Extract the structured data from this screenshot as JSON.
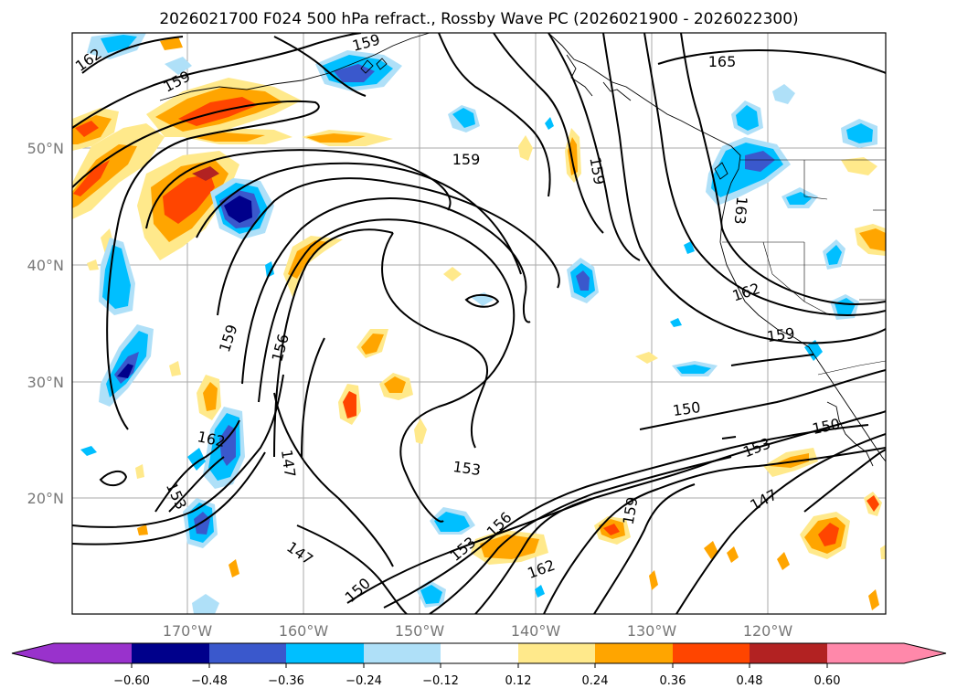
{
  "title": "2026021700 F024 500 hPa refract., Rossby Wave PC (2026021900 - 2026022300)",
  "lat_labels": [
    "50°N",
    "40°N",
    "30°N",
    "20°N"
  ],
  "lon_labels": [
    "170°W",
    "160°W",
    "150°W",
    "140°W",
    "130°W",
    "120°W"
  ],
  "colorbar": {
    "tick_labels": [
      "−0.60",
      "−0.48",
      "−0.36",
      "−0.24",
      "−0.12",
      "0.12",
      "0.24",
      "0.36",
      "0.48",
      "0.60"
    ],
    "colors": [
      "#9932cc",
      "#00008b",
      "#3a58cc",
      "#00bfff",
      "#afe0f8",
      "#ffffff",
      "#ffe98b",
      "#ffa500",
      "#ff4500",
      "#b22222",
      "#ff88aa"
    ]
  },
  "contour_labels": [
    "162",
    "159",
    "159",
    "165",
    "159",
    "159",
    "163",
    "162",
    "159",
    "159",
    "156",
    "150",
    "150",
    "162",
    "147",
    "153",
    "153",
    "153",
    "156",
    "159",
    "162",
    "147",
    "150",
    "153",
    "147"
  ]
}
